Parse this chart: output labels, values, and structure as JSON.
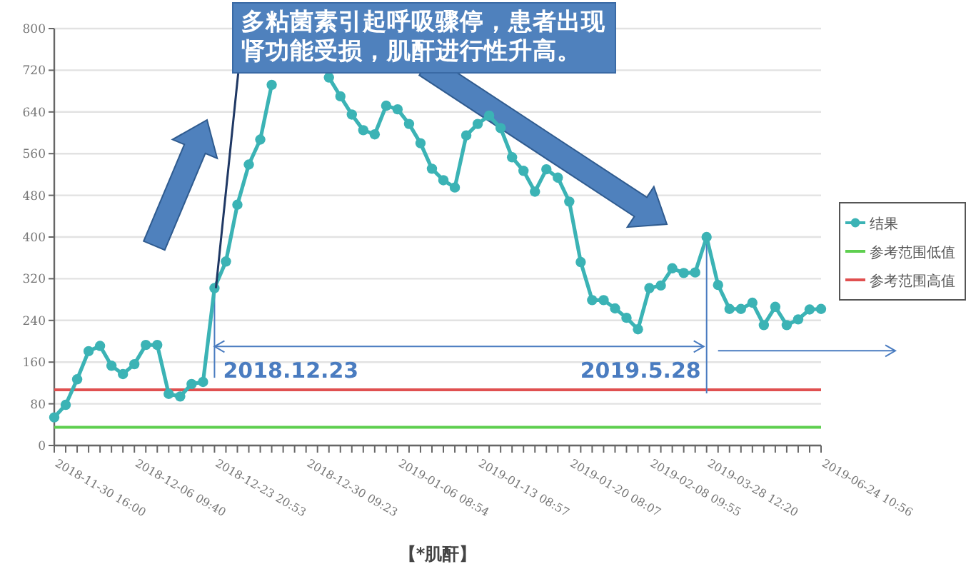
{
  "chart_data": {
    "type": "line",
    "xlabel": "【*肌酐】",
    "categories": [
      "2018-11-30 16:00",
      null,
      null,
      null,
      null,
      null,
      null,
      "2018-12-06 09:40",
      null,
      null,
      null,
      null,
      null,
      null,
      "2018-12-23 20:53",
      null,
      null,
      null,
      null,
      null,
      null,
      null,
      "2018-12-30 09:23",
      null,
      null,
      null,
      null,
      null,
      null,
      null,
      "2019-01-06 08:54",
      null,
      null,
      null,
      null,
      null,
      null,
      "2019-01-13 08:57",
      null,
      null,
      null,
      null,
      null,
      null,
      null,
      "2019-01-20 08:07",
      null,
      null,
      null,
      null,
      null,
      null,
      "2019-02-08 09:55",
      null,
      null,
      null,
      null,
      "2019-03-28 12:20",
      null,
      null,
      null,
      null,
      null,
      null,
      null,
      null,
      null,
      "2019-06-24 10:56"
    ],
    "series": [
      {
        "name": "结果",
        "color": "#3bb3b5",
        "values": [
          54,
          78,
          127,
          181,
          191,
          153,
          137,
          156,
          193,
          193,
          99,
          94,
          118,
          122,
          302,
          353,
          462,
          539,
          587,
          692,
          null,
          null,
          null,
          null,
          706,
          670,
          635,
          605,
          597,
          652,
          645,
          617,
          580,
          531,
          509,
          495,
          595,
          617,
          633,
          609,
          553,
          527,
          487,
          530,
          514,
          468,
          352,
          279,
          279,
          263,
          245,
          223,
          302,
          307,
          340,
          331,
          332,
          400,
          308,
          262,
          262,
          274,
          231,
          266,
          231,
          242,
          261,
          262
        ]
      }
    ],
    "ref_lines": [
      {
        "axis": "y",
        "value": 35,
        "label": "参考范围低值",
        "color": "#5ecf4f"
      },
      {
        "axis": "y",
        "value": 107,
        "label": "参考范围高值",
        "color": "#e05050"
      }
    ],
    "annotations": [
      {
        "text": "多粘菌素引起呼吸骤停，患者出现肾功能受损，肌酐进行性升高。",
        "x": "2018-12-23 20:53",
        "y": 302
      },
      {
        "text": "2018.12.23",
        "x": "2018-12-23 20:53",
        "y": 302
      },
      {
        "text": "2019.5.28",
        "x": "2019-03-28 12:20",
        "y": 400
      }
    ],
    "ylim": [
      0,
      800
    ],
    "yticks": [
      0,
      80,
      160,
      240,
      320,
      400,
      480,
      560,
      640,
      720,
      800
    ],
    "grid": "y",
    "legend": "right",
    "marker": "circle",
    "line_style": "solid"
  }
}
